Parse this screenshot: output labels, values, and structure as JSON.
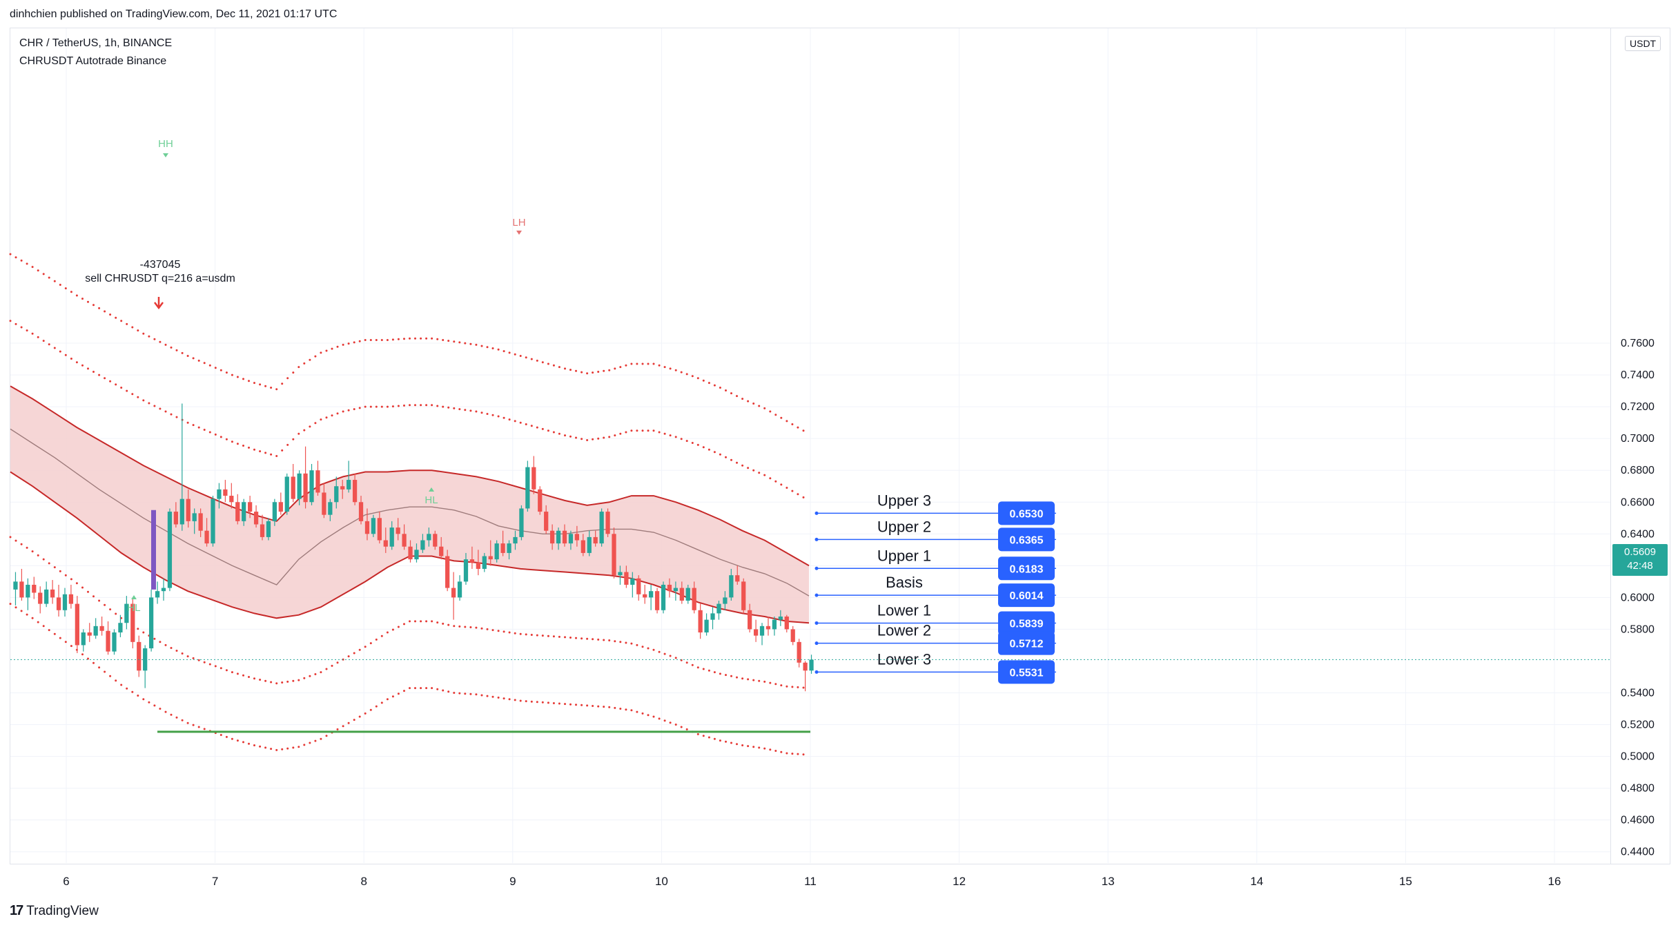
{
  "header": {
    "published": "dinhchien published on TradingView.com, Dec 11, 2021 01:17 UTC"
  },
  "legend": {
    "symbol": "CHR / TetherUS, 1h, BINANCE",
    "indicator": "CHRUSDT Autotrade Binance"
  },
  "price_axis": {
    "unit": "USDT",
    "ticks": [
      "0.7600",
      "0.7400",
      "0.7200",
      "0.7000",
      "0.6800",
      "0.6600",
      "0.6400",
      "0.6200",
      "0.6000",
      "0.5800",
      "0.5400",
      "0.5200",
      "0.5000",
      "0.4800",
      "0.4600",
      "0.4400"
    ],
    "last_price": "0.5609",
    "countdown": "42:48"
  },
  "time_axis": {
    "ticks": [
      "6",
      "7",
      "8",
      "9",
      "10",
      "11",
      "12",
      "13",
      "14",
      "15",
      "16"
    ]
  },
  "colors": {
    "up": "#26a69a",
    "down": "#ef5350",
    "band_fill": "#f5cfcf",
    "band_line": "#c62828",
    "level_line": "#2962ff",
    "target": "#43a047"
  },
  "annotations": {
    "hh": "HH",
    "lh": "LH",
    "hl_left": "HL",
    "hl_mid": "HL",
    "order_id": "-437045",
    "order_text": "sell CHRUSDT q=216 a=usdm"
  },
  "footer": {
    "brand": "TradingView"
  },
  "chart_data": {
    "type": "candlestick",
    "title": "CHR / TetherUS, 1h, BINANCE",
    "ylim": [
      0.43,
      0.77
    ],
    "x_ticks": [
      "6",
      "7",
      "8",
      "9",
      "10",
      "11",
      "12",
      "13",
      "14",
      "15",
      "16"
    ],
    "y_ticks": [
      0.76,
      0.74,
      0.72,
      0.7,
      0.68,
      0.66,
      0.64,
      0.62,
      0.6,
      0.58,
      0.54,
      0.52,
      0.5,
      0.48,
      0.46,
      0.44
    ],
    "last_price": 0.5609,
    "levels": [
      {
        "name": "Upper 3",
        "value": "0.6530"
      },
      {
        "name": "Upper 2",
        "value": "0.6365"
      },
      {
        "name": "Upper 1",
        "value": "0.6183"
      },
      {
        "name": "Basis",
        "value": "0.6014"
      },
      {
        "name": "Lower 1",
        "value": "0.5839"
      },
      {
        "name": "Lower 2",
        "value": "0.5712"
      },
      {
        "name": "Lower 3",
        "value": "0.5531"
      }
    ],
    "target_line": 0.5155,
    "candles": [
      [
        0.605,
        0.616,
        0.595,
        0.61
      ],
      [
        0.61,
        0.618,
        0.598,
        0.6
      ],
      [
        0.6,
        0.612,
        0.592,
        0.608
      ],
      [
        0.608,
        0.613,
        0.599,
        0.603
      ],
      [
        0.603,
        0.607,
        0.59,
        0.596
      ],
      [
        0.596,
        0.61,
        0.594,
        0.605
      ],
      [
        0.605,
        0.611,
        0.596,
        0.6
      ],
      [
        0.6,
        0.608,
        0.588,
        0.592
      ],
      [
        0.592,
        0.606,
        0.588,
        0.602
      ],
      [
        0.602,
        0.608,
        0.593,
        0.596
      ],
      [
        0.596,
        0.601,
        0.565,
        0.57
      ],
      [
        0.57,
        0.58,
        0.566,
        0.578
      ],
      [
        0.578,
        0.584,
        0.572,
        0.576
      ],
      [
        0.576,
        0.587,
        0.574,
        0.582
      ],
      [
        0.582,
        0.588,
        0.576,
        0.579
      ],
      [
        0.579,
        0.585,
        0.564,
        0.566
      ],
      [
        0.566,
        0.58,
        0.564,
        0.578
      ],
      [
        0.578,
        0.589,
        0.575,
        0.584
      ],
      [
        0.584,
        0.601,
        0.58,
        0.596
      ],
      [
        0.596,
        0.6,
        0.568,
        0.572
      ],
      [
        0.572,
        0.576,
        0.55,
        0.554
      ],
      [
        0.554,
        0.57,
        0.543,
        0.568
      ],
      [
        0.568,
        0.605,
        0.566,
        0.6
      ],
      [
        0.6,
        0.61,
        0.596,
        0.604
      ],
      [
        0.604,
        0.612,
        0.598,
        0.606
      ],
      [
        0.606,
        0.656,
        0.604,
        0.654
      ],
      [
        0.654,
        0.66,
        0.644,
        0.646
      ],
      [
        0.646,
        0.722,
        0.642,
        0.662
      ],
      [
        0.662,
        0.668,
        0.644,
        0.648
      ],
      [
        0.648,
        0.656,
        0.64,
        0.653
      ],
      [
        0.653,
        0.656,
        0.638,
        0.642
      ],
      [
        0.642,
        0.65,
        0.632,
        0.634
      ],
      [
        0.634,
        0.664,
        0.632,
        0.662
      ],
      [
        0.662,
        0.672,
        0.656,
        0.668
      ],
      [
        0.668,
        0.674,
        0.66,
        0.664
      ],
      [
        0.664,
        0.672,
        0.656,
        0.66
      ],
      [
        0.66,
        0.665,
        0.646,
        0.648
      ],
      [
        0.648,
        0.662,
        0.645,
        0.66
      ],
      [
        0.66,
        0.664,
        0.65,
        0.654
      ],
      [
        0.654,
        0.658,
        0.644,
        0.646
      ],
      [
        0.646,
        0.652,
        0.636,
        0.638
      ],
      [
        0.638,
        0.65,
        0.636,
        0.648
      ],
      [
        0.648,
        0.662,
        0.645,
        0.66
      ],
      [
        0.66,
        0.666,
        0.652,
        0.654
      ],
      [
        0.654,
        0.678,
        0.652,
        0.676
      ],
      [
        0.676,
        0.684,
        0.66,
        0.662
      ],
      [
        0.662,
        0.68,
        0.658,
        0.678
      ],
      [
        0.678,
        0.695,
        0.656,
        0.66
      ],
      [
        0.66,
        0.684,
        0.658,
        0.68
      ],
      [
        0.68,
        0.686,
        0.664,
        0.666
      ],
      [
        0.666,
        0.672,
        0.65,
        0.652
      ],
      [
        0.652,
        0.662,
        0.648,
        0.66
      ],
      [
        0.66,
        0.676,
        0.656,
        0.67
      ],
      [
        0.67,
        0.674,
        0.662,
        0.668
      ],
      [
        0.668,
        0.686,
        0.666,
        0.674
      ],
      [
        0.674,
        0.678,
        0.658,
        0.66
      ],
      [
        0.66,
        0.664,
        0.646,
        0.648
      ],
      [
        0.648,
        0.656,
        0.636,
        0.64
      ],
      [
        0.64,
        0.652,
        0.638,
        0.65
      ],
      [
        0.65,
        0.654,
        0.634,
        0.636
      ],
      [
        0.636,
        0.644,
        0.628,
        0.632
      ],
      [
        0.632,
        0.648,
        0.63,
        0.644
      ],
      [
        0.644,
        0.65,
        0.636,
        0.64
      ],
      [
        0.64,
        0.646,
        0.63,
        0.632
      ],
      [
        0.632,
        0.636,
        0.622,
        0.624
      ],
      [
        0.624,
        0.634,
        0.622,
        0.63
      ],
      [
        0.63,
        0.64,
        0.628,
        0.636
      ],
      [
        0.636,
        0.644,
        0.632,
        0.64
      ],
      [
        0.64,
        0.642,
        0.63,
        0.632
      ],
      [
        0.632,
        0.638,
        0.624,
        0.626
      ],
      [
        0.626,
        0.63,
        0.604,
        0.606
      ],
      [
        0.606,
        0.616,
        0.586,
        0.6
      ],
      [
        0.6,
        0.614,
        0.598,
        0.61
      ],
      [
        0.61,
        0.628,
        0.608,
        0.624
      ],
      [
        0.624,
        0.632,
        0.618,
        0.622
      ],
      [
        0.622,
        0.63,
        0.614,
        0.618
      ],
      [
        0.618,
        0.628,
        0.616,
        0.626
      ],
      [
        0.626,
        0.636,
        0.62,
        0.624
      ],
      [
        0.624,
        0.636,
        0.622,
        0.634
      ],
      [
        0.634,
        0.642,
        0.626,
        0.628
      ],
      [
        0.628,
        0.636,
        0.624,
        0.634
      ],
      [
        0.634,
        0.642,
        0.63,
        0.638
      ],
      [
        0.638,
        0.658,
        0.636,
        0.656
      ],
      [
        0.656,
        0.686,
        0.654,
        0.682
      ],
      [
        0.682,
        0.689,
        0.665,
        0.668
      ],
      [
        0.668,
        0.67,
        0.652,
        0.654
      ],
      [
        0.654,
        0.658,
        0.64,
        0.642
      ],
      [
        0.642,
        0.646,
        0.63,
        0.634
      ],
      [
        0.634,
        0.644,
        0.63,
        0.642
      ],
      [
        0.642,
        0.646,
        0.632,
        0.634
      ],
      [
        0.634,
        0.642,
        0.63,
        0.64
      ],
      [
        0.64,
        0.645,
        0.632,
        0.636
      ],
      [
        0.636,
        0.64,
        0.626,
        0.628
      ],
      [
        0.628,
        0.642,
        0.626,
        0.638
      ],
      [
        0.638,
        0.642,
        0.632,
        0.634
      ],
      [
        0.634,
        0.656,
        0.632,
        0.654
      ],
      [
        0.654,
        0.656,
        0.638,
        0.64
      ],
      [
        0.64,
        0.644,
        0.612,
        0.614
      ],
      [
        0.614,
        0.62,
        0.608,
        0.616
      ],
      [
        0.616,
        0.62,
        0.606,
        0.608
      ],
      [
        0.608,
        0.616,
        0.6,
        0.612
      ],
      [
        0.612,
        0.614,
        0.598,
        0.602
      ],
      [
        0.602,
        0.608,
        0.596,
        0.6
      ],
      [
        0.6,
        0.608,
        0.592,
        0.604
      ],
      [
        0.604,
        0.606,
        0.59,
        0.592
      ],
      [
        0.592,
        0.61,
        0.59,
        0.608
      ],
      [
        0.608,
        0.612,
        0.6,
        0.604
      ],
      [
        0.604,
        0.61,
        0.598,
        0.606
      ],
      [
        0.606,
        0.61,
        0.596,
        0.598
      ],
      [
        0.598,
        0.608,
        0.596,
        0.606
      ],
      [
        0.606,
        0.61,
        0.59,
        0.592
      ],
      [
        0.592,
        0.596,
        0.574,
        0.578
      ],
      [
        0.578,
        0.59,
        0.576,
        0.586
      ],
      [
        0.586,
        0.594,
        0.58,
        0.59
      ],
      [
        0.59,
        0.598,
        0.586,
        0.596
      ],
      [
        0.596,
        0.604,
        0.592,
        0.6
      ],
      [
        0.6,
        0.618,
        0.598,
        0.614
      ],
      [
        0.614,
        0.62,
        0.608,
        0.61
      ],
      [
        0.61,
        0.612,
        0.59,
        0.592
      ],
      [
        0.592,
        0.596,
        0.578,
        0.58
      ],
      [
        0.58,
        0.586,
        0.572,
        0.576
      ],
      [
        0.576,
        0.584,
        0.57,
        0.582
      ],
      [
        0.582,
        0.588,
        0.576,
        0.58
      ],
      [
        0.58,
        0.588,
        0.576,
        0.586
      ],
      [
        0.586,
        0.592,
        0.582,
        0.588
      ],
      [
        0.588,
        0.589,
        0.578,
        0.58
      ],
      [
        0.58,
        0.582,
        0.57,
        0.572
      ],
      [
        0.572,
        0.574,
        0.556,
        0.559
      ],
      [
        0.559,
        0.56,
        0.541,
        0.554
      ],
      [
        0.554,
        0.564,
        0.552,
        0.5609
      ]
    ],
    "band": {
      "upper": [
        0.733,
        0.725,
        0.716,
        0.707,
        0.699,
        0.691,
        0.683,
        0.676,
        0.669,
        0.663,
        0.657,
        0.652,
        0.648,
        0.662,
        0.671,
        0.676,
        0.679,
        0.679,
        0.68,
        0.68,
        0.678,
        0.676,
        0.673,
        0.669,
        0.665,
        0.661,
        0.658,
        0.66,
        0.664,
        0.664,
        0.66,
        0.655,
        0.649,
        0.642,
        0.636,
        0.628,
        0.62
      ],
      "basis": [
        0.706,
        0.697,
        0.688,
        0.678,
        0.668,
        0.659,
        0.65,
        0.642,
        0.634,
        0.627,
        0.62,
        0.614,
        0.608,
        0.624,
        0.635,
        0.644,
        0.652,
        0.655,
        0.657,
        0.657,
        0.655,
        0.651,
        0.645,
        0.642,
        0.64,
        0.64,
        0.642,
        0.643,
        0.643,
        0.641,
        0.636,
        0.63,
        0.624,
        0.619,
        0.615,
        0.609,
        0.601
      ],
      "lower": [
        0.679,
        0.67,
        0.66,
        0.65,
        0.639,
        0.628,
        0.619,
        0.611,
        0.604,
        0.599,
        0.594,
        0.59,
        0.587,
        0.589,
        0.594,
        0.602,
        0.61,
        0.619,
        0.626,
        0.626,
        0.623,
        0.622,
        0.62,
        0.618,
        0.617,
        0.616,
        0.615,
        0.614,
        0.612,
        0.608,
        0.603,
        0.597,
        0.593,
        0.59,
        0.588,
        0.585,
        0.584
      ]
    }
  }
}
